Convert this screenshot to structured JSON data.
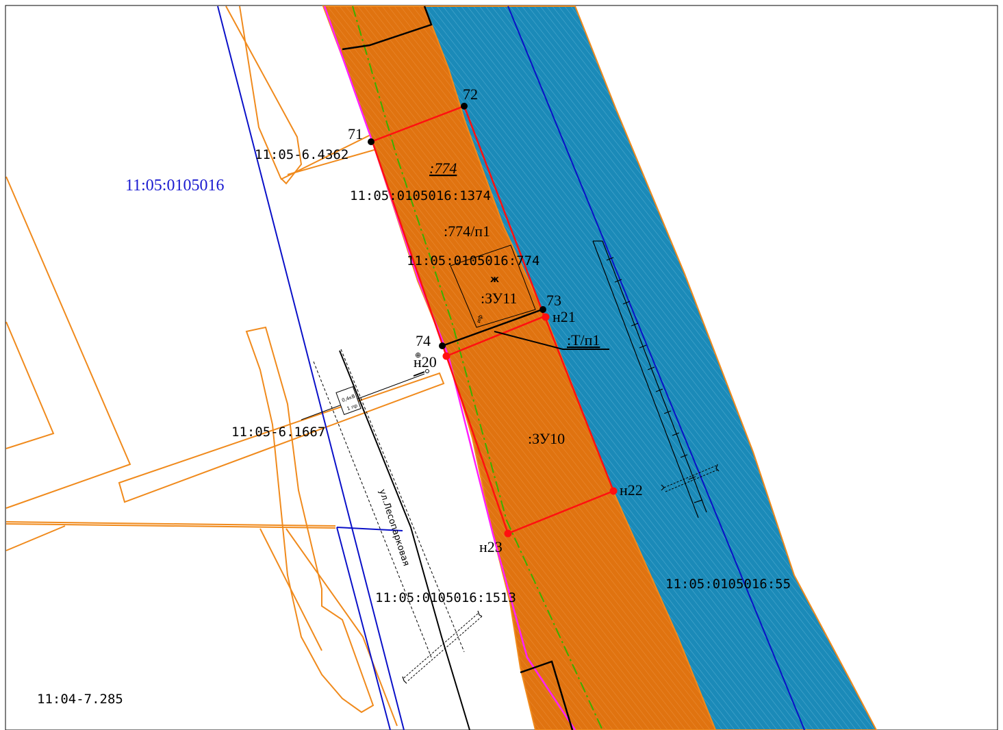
{
  "colors": {
    "parcel_orange": "#e07310",
    "parcel_orange_outline": "#f08a1c",
    "water_blue": "#1b8ab8",
    "boundary_red": "#ff1010",
    "block_blue": "#0a10c8",
    "magenta": "#ff20ff",
    "green_axis": "#38b000",
    "black": "#000000",
    "label_blue": "#1a1ad0"
  },
  "labels": {
    "quarter": "11:05:0105016",
    "survey_point_1": "11:05-6.4362",
    "survey_point_2": "11:05-6.1667",
    "survey_point_3": "11:04-7.285",
    "parcel_1374": "11:05:0105016:1374",
    "parcel_774": "11:05:0105016:774",
    "parcel_1513": "11:05:0105016:1513",
    "parcel_55": "11:05:0105016:55",
    "zone_774": ":774",
    "zone_774_p1": ":774/п1",
    "zone_zu11": ":ЗУ11",
    "zone_zu10": ":ЗУ10",
    "zone_t_p1": ":Т/п1",
    "street": "ул.Лесопарковая",
    "line_voltage": "0,4кВ",
    "line_count": "1 пр"
  },
  "points": {
    "p71": "71",
    "p72": "72",
    "p73": "73",
    "p74": "74",
    "n20": "н20",
    "n21": "н21",
    "n22": "н22",
    "n23": "н23"
  },
  "icons": {
    "building_mark": "building-mark-icon",
    "survey_mark": "survey-mark-icon"
  }
}
